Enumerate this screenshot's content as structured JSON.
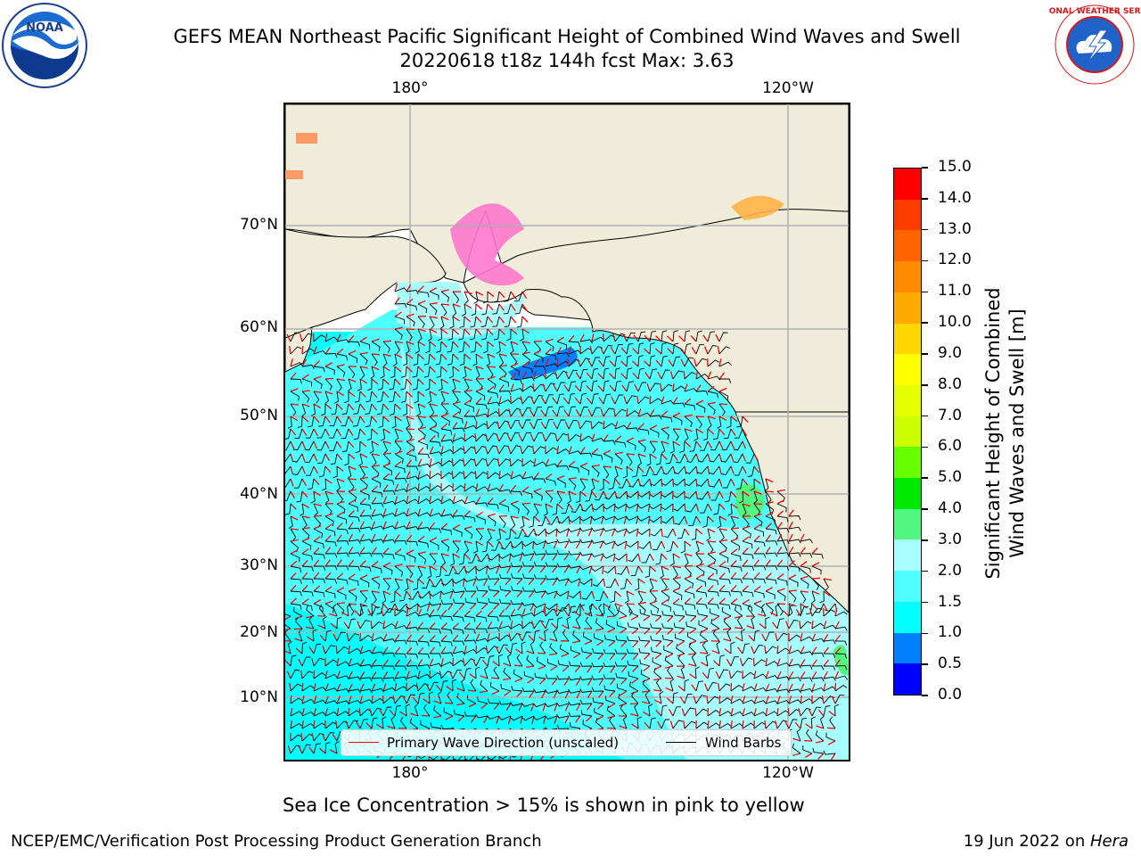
{
  "title": {
    "line1": "GEFS MEAN Northeast Pacific Significant Height of Combined Wind Waves and Swell",
    "line2": "20220618 t18z 144h fcst   Max: 3.63"
  },
  "map": {
    "lon_labels_top": [
      "180°",
      "120°W"
    ],
    "lon_labels_bottom": [
      "180°",
      "120°W"
    ],
    "lat_labels": [
      "70°N",
      "60°N",
      "50°N",
      "40°N",
      "30°N",
      "20°N",
      "10°N"
    ],
    "colors": {
      "land": "#efedda",
      "ocean_low": "#00ffff",
      "ocean_mid": "#4dffff",
      "ocean_high": "#a8ffff",
      "wave_arrow": "#ff0000",
      "barb": "#000000"
    }
  },
  "colorbar": {
    "label_line1": "Significant Height of Combined",
    "label_line2": "Wind Waves and Swell [m]",
    "ticks": [
      "0.0",
      "0.5",
      "1.0",
      "1.5",
      "2.0",
      "3.0",
      "4.0",
      "5.0",
      "6.0",
      "7.0",
      "8.0",
      "9.0",
      "10.0",
      "11.0",
      "12.0",
      "13.0",
      "14.0",
      "15.0"
    ],
    "colors": [
      "#0000ff",
      "#0080ff",
      "#00ffff",
      "#4dffff",
      "#a8ffff",
      "#50f880",
      "#00e800",
      "#66ff00",
      "#ccff00",
      "#e6ff00",
      "#ffff00",
      "#ffd700",
      "#ffaa00",
      "#ff8c00",
      "#ff6400",
      "#ff3c00",
      "#ff0000"
    ]
  },
  "legend": {
    "wave_direction": "Primary Wave Direction (unscaled)",
    "wind_barbs": "Wind Barbs"
  },
  "caption": "Sea Ice Concentration > 15% is shown in pink to yellow",
  "footer": {
    "left": "NCEP/EMC/Verification Post Processing Product Generation Branch",
    "right_prefix": "19 Jun 2022 on ",
    "right_machine": "Hera"
  },
  "logos": {
    "noaa_text": "NOAA",
    "nws_text": "NATIONAL WEATHER SERVICE"
  }
}
